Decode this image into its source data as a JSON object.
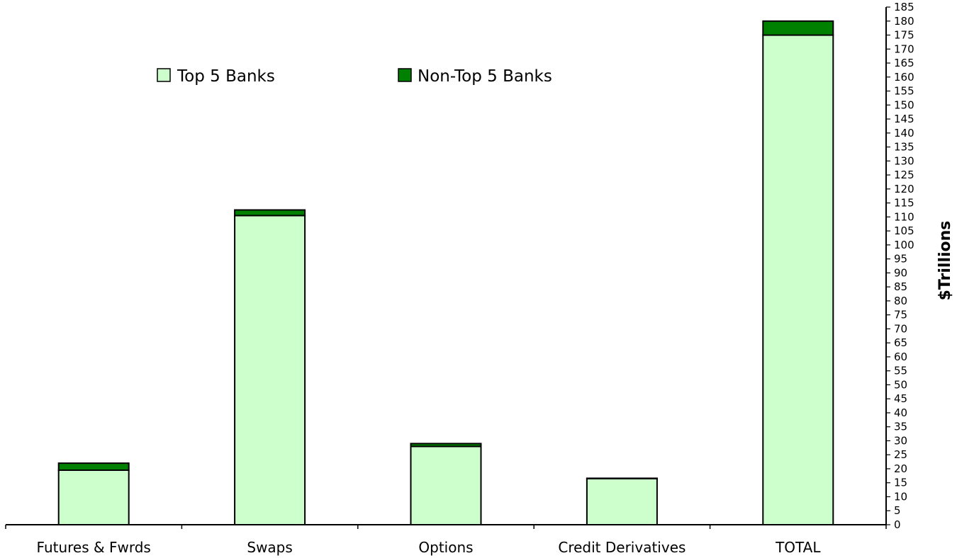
{
  "chart_data": {
    "type": "bar",
    "stacked": true,
    "categories": [
      "Futures & Fwrds",
      "Swaps",
      "Options",
      "Credit Derivatives",
      "TOTAL"
    ],
    "series": [
      {
        "name": "Top 5 Banks",
        "values": [
          19.5,
          110.5,
          28,
          16.5,
          175
        ],
        "color": "#ccffcc"
      },
      {
        "name": "Non-Top 5 Banks",
        "values": [
          2.5,
          2,
          1,
          0.1,
          5
        ],
        "color": "#008000"
      }
    ],
    "ylabel": "$Trillions",
    "ylim": [
      0,
      185
    ],
    "ytick_step": 5,
    "y_axis_side": "right",
    "grid": false,
    "legend_position": "top-left"
  }
}
